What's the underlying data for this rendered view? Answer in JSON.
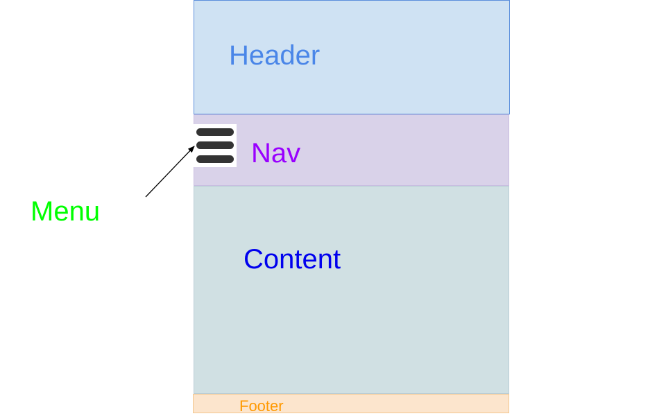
{
  "layout": {
    "header": {
      "label": "Header",
      "fill": "#cfe2f3",
      "text_color": "#4a86e8"
    },
    "nav": {
      "label": "Nav",
      "fill": "#d9d2e9",
      "text_color": "#9900ff"
    },
    "content": {
      "label": "Content",
      "fill": "#d0e0e3",
      "text_color": "#0000ee"
    },
    "footer": {
      "label": "Footer",
      "fill": "#fce5cd",
      "text_color": "#ff9900"
    }
  },
  "annotation": {
    "label": "Menu",
    "text_color": "#00ff00",
    "icon": "hamburger-menu-icon",
    "arrow_color": "#000000"
  }
}
